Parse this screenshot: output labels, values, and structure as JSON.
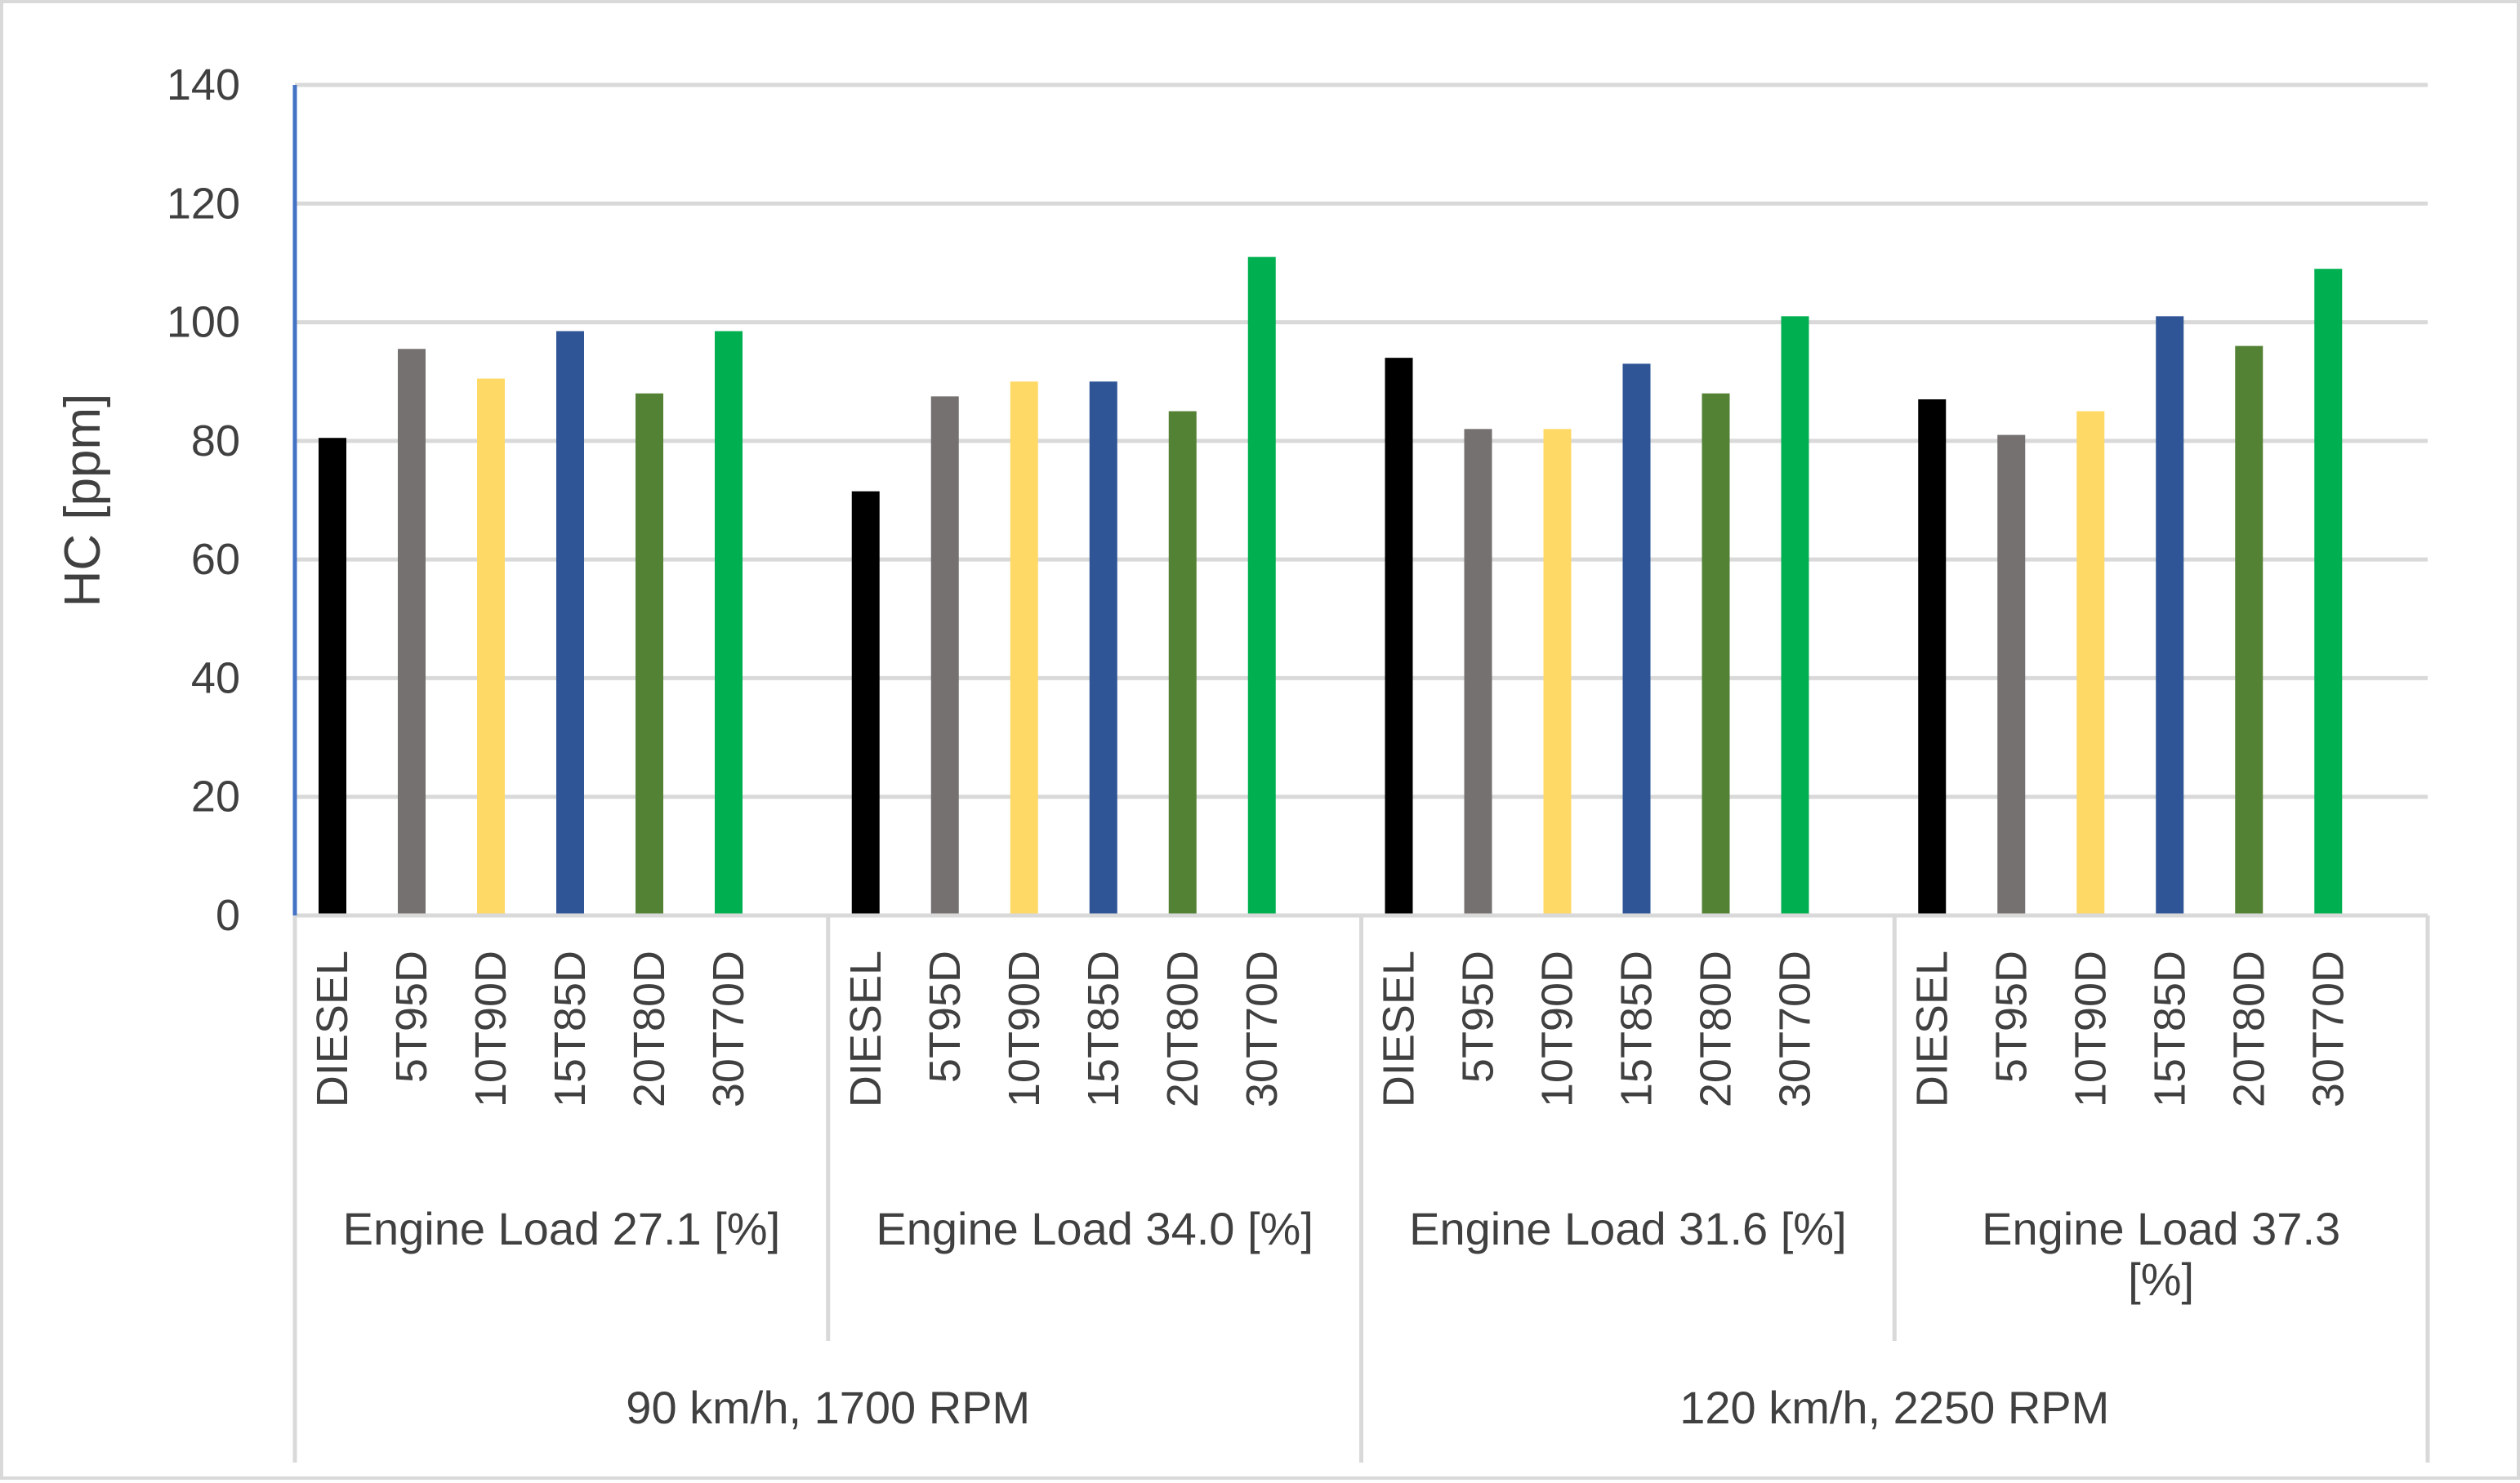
{
  "chart_data": {
    "type": "bar",
    "title": "",
    "ylabel": "HC [ppm]",
    "xlabel": "",
    "ylim": [
      0,
      140
    ],
    "yticks": [
      0,
      20,
      40,
      60,
      80,
      100,
      120,
      140
    ],
    "grid": true,
    "legend": "none",
    "series_names": [
      "DIESEL",
      "5T95D",
      "10T90D",
      "15T85D",
      "20T80D",
      "30T70D"
    ],
    "series_colors": [
      "#000000",
      "#767171",
      "#ffd966",
      "#2f5597",
      "#548235",
      "#00b050"
    ],
    "groups": [
      {
        "label": "Engine Load 27.1 [%]",
        "label_lines": [
          "Engine Load 27.1 [%]"
        ],
        "values": [
          80.5,
          95.5,
          90.5,
          98.5,
          88,
          98.5
        ]
      },
      {
        "label": "Engine Load 34.0 [%]",
        "label_lines": [
          "Engine Load 34.0 [%]"
        ],
        "values": [
          71.5,
          87.5,
          90,
          90,
          85,
          111
        ]
      },
      {
        "label": "Engine Load 31.6 [%]",
        "label_lines": [
          "Engine Load 31.6 [%]"
        ],
        "values": [
          94,
          82,
          82,
          93,
          88,
          101
        ]
      },
      {
        "label": "Engine Load 37.3 [%]",
        "label_lines": [
          "Engine Load 37.3",
          "[%]"
        ],
        "values": [
          87,
          81,
          85,
          101,
          96,
          109
        ]
      }
    ],
    "super_groups": [
      {
        "label": "90 km/h, 1700 RPM",
        "span": [
          0,
          1
        ]
      },
      {
        "label": "120 km/h, 2250 RPM",
        "span": [
          2,
          3
        ]
      }
    ]
  }
}
